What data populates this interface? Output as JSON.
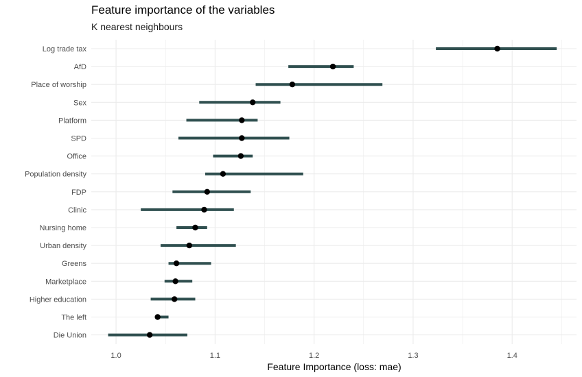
{
  "chart_data": {
    "type": "scatter",
    "subtype": "dot-with-interval",
    "title": "Feature importance of the variables",
    "subtitle": "K nearest neighbours",
    "xlabel": "Feature Importance (loss: mae)",
    "ylabel": "",
    "xlim": [
      0.975,
      1.465
    ],
    "xticks": [
      "1.0",
      "1.1",
      "1.2",
      "1.3",
      "1.4"
    ],
    "grid": true,
    "legend": "none",
    "colors": {
      "interval": "#2f4f4f",
      "point": "#000000",
      "grid": "#ebebeb",
      "background": "#ffffff"
    },
    "features": [
      {
        "name": "Log trade tax",
        "value": 1.385,
        "low": 1.323,
        "high": 1.445
      },
      {
        "name": "AfD",
        "value": 1.219,
        "low": 1.174,
        "high": 1.24
      },
      {
        "name": "Place of worship",
        "value": 1.178,
        "low": 1.141,
        "high": 1.269
      },
      {
        "name": "Sex",
        "value": 1.138,
        "low": 1.084,
        "high": 1.166
      },
      {
        "name": "Platform",
        "value": 1.127,
        "low": 1.071,
        "high": 1.143
      },
      {
        "name": "SPD",
        "value": 1.127,
        "low": 1.063,
        "high": 1.175
      },
      {
        "name": "Office",
        "value": 1.126,
        "low": 1.098,
        "high": 1.138
      },
      {
        "name": "Population density",
        "value": 1.108,
        "low": 1.09,
        "high": 1.189
      },
      {
        "name": "FDP",
        "value": 1.092,
        "low": 1.057,
        "high": 1.136
      },
      {
        "name": "Clinic",
        "value": 1.089,
        "low": 1.025,
        "high": 1.119
      },
      {
        "name": "Nursing home",
        "value": 1.08,
        "low": 1.061,
        "high": 1.092
      },
      {
        "name": "Urban density",
        "value": 1.074,
        "low": 1.045,
        "high": 1.121
      },
      {
        "name": "Greens",
        "value": 1.061,
        "low": 1.053,
        "high": 1.096
      },
      {
        "name": "Marketplace",
        "value": 1.06,
        "low": 1.049,
        "high": 1.077
      },
      {
        "name": "Higher education",
        "value": 1.059,
        "low": 1.035,
        "high": 1.08
      },
      {
        "name": "The left",
        "value": 1.042,
        "low": 1.04,
        "high": 1.053
      },
      {
        "name": "Die Union",
        "value": 1.034,
        "low": 0.992,
        "high": 1.072
      }
    ]
  }
}
